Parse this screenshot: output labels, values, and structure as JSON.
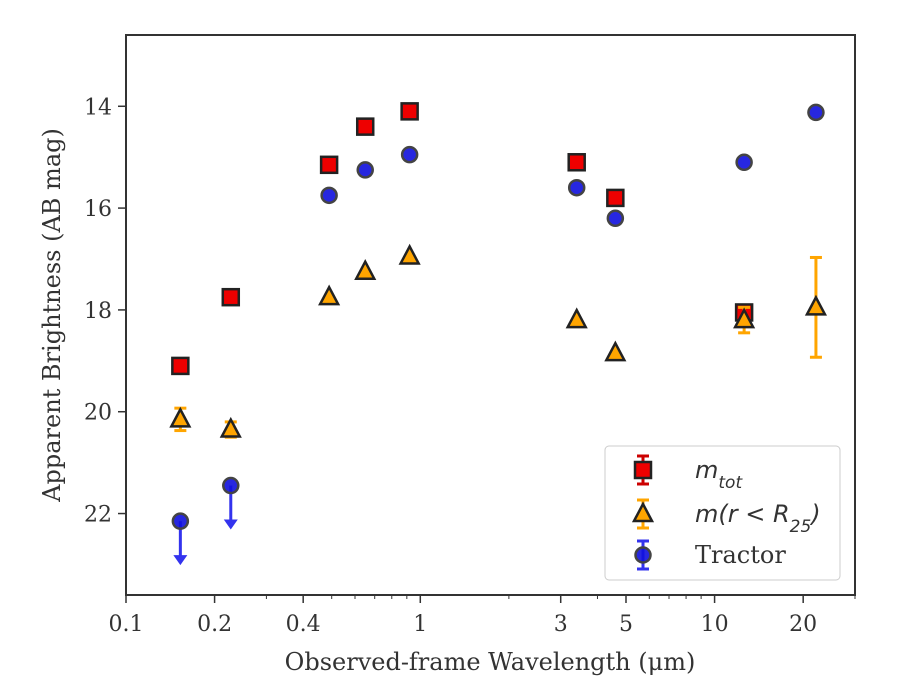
{
  "chart_data": {
    "type": "scatter",
    "xlabel": "Observed-frame Wavelength (μm)",
    "ylabel": "Apparent Brightness (AB mag)",
    "x_scale": "log",
    "xlim": [
      0.1,
      30
    ],
    "ylim": [
      23.6,
      12.6
    ],
    "y_inverted": true,
    "grid": false,
    "legend_position": "lower-right",
    "x_ticks": [
      {
        "value": 0.1,
        "label": "0.1"
      },
      {
        "value": 0.2,
        "label": "0.2"
      },
      {
        "value": 0.4,
        "label": "0.4"
      },
      {
        "value": 1,
        "label": "1"
      },
      {
        "value": 3,
        "label": "3"
      },
      {
        "value": 5,
        "label": "5"
      },
      {
        "value": 10,
        "label": "10"
      },
      {
        "value": 20,
        "label": "20"
      }
    ],
    "y_ticks": [
      {
        "value": 14,
        "label": "14"
      },
      {
        "value": 16,
        "label": "16"
      },
      {
        "value": 18,
        "label": "18"
      },
      {
        "value": 20,
        "label": "20"
      },
      {
        "value": 22,
        "label": "22"
      }
    ],
    "series": [
      {
        "key": "m_tot",
        "name": "m_tot",
        "marker": "square",
        "color": "#ee0000",
        "errcolor": "#cc0000",
        "points": [
          {
            "x": 0.153,
            "y": 19.1
          },
          {
            "x": 0.227,
            "y": 17.75
          },
          {
            "x": 0.49,
            "y": 15.15
          },
          {
            "x": 0.65,
            "y": 14.4
          },
          {
            "x": 0.92,
            "y": 14.1
          },
          {
            "x": 3.4,
            "y": 15.1
          },
          {
            "x": 4.6,
            "y": 15.8
          },
          {
            "x": 12.6,
            "y": 18.05
          }
        ]
      },
      {
        "key": "m_r25",
        "name": "m(r < R25)",
        "marker": "triangle",
        "color": "#ffa500",
        "errcolor": "#ffa500",
        "points": [
          {
            "x": 0.153,
            "y": 20.15,
            "yerr": 0.22
          },
          {
            "x": 0.227,
            "y": 20.35,
            "yerr": 0.15
          },
          {
            "x": 0.49,
            "y": 17.75
          },
          {
            "x": 0.65,
            "y": 17.25
          },
          {
            "x": 0.92,
            "y": 16.95
          },
          {
            "x": 3.4,
            "y": 18.2
          },
          {
            "x": 4.6,
            "y": 18.85
          },
          {
            "x": 12.6,
            "y": 18.2,
            "yerr": 0.25
          },
          {
            "x": 22.1,
            "y": 17.95,
            "yerr": 0.98
          }
        ]
      },
      {
        "key": "tractor",
        "name": "Tractor",
        "marker": "circle",
        "color": "#1010dd",
        "errcolor": "#3333ee",
        "points": [
          {
            "x": 0.153,
            "y": 22.15,
            "upper_limit": true
          },
          {
            "x": 0.227,
            "y": 21.45,
            "upper_limit": true
          },
          {
            "x": 0.49,
            "y": 15.75
          },
          {
            "x": 0.65,
            "y": 15.25
          },
          {
            "x": 0.92,
            "y": 14.95
          },
          {
            "x": 3.4,
            "y": 15.6
          },
          {
            "x": 4.6,
            "y": 16.2
          },
          {
            "x": 12.6,
            "y": 15.1
          },
          {
            "x": 22.1,
            "y": 14.12
          }
        ]
      }
    ]
  },
  "legend": {
    "entries": [
      {
        "key": "m_tot",
        "main": "m",
        "sub": "tot",
        "rest": ""
      },
      {
        "key": "m_r25",
        "main": "m(r < R",
        "sub": "25",
        "rest": ")"
      },
      {
        "key": "tractor",
        "main": "Tractor",
        "sub": "",
        "rest": ""
      }
    ]
  }
}
